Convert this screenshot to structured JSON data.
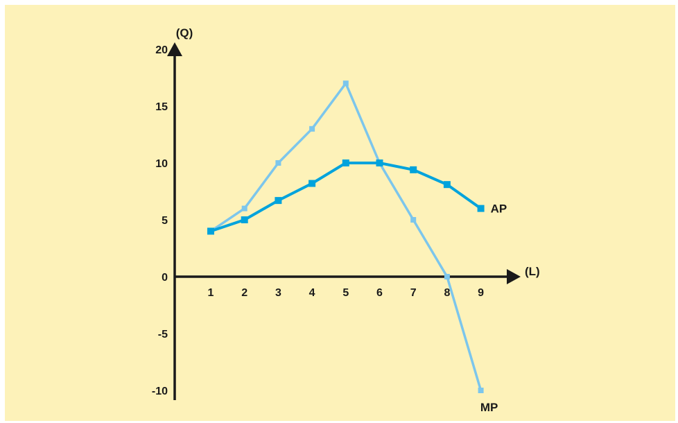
{
  "colors": {
    "background": "#fdf2b9",
    "axis": "#1a1a1a",
    "ap": "#00a3dc",
    "mp": "#7cc6ec"
  },
  "chart_data": {
    "type": "line",
    "title": "",
    "xlabel": "(L)",
    "ylabel": "(Q)",
    "x": [
      1,
      2,
      3,
      4,
      5,
      6,
      7,
      8,
      9
    ],
    "xticks": [
      "1",
      "2",
      "3",
      "4",
      "5",
      "6",
      "7",
      "8",
      "9"
    ],
    "yticks": [
      "-10",
      "-5",
      "0",
      "5",
      "10",
      "15",
      "20"
    ],
    "ylim": [
      -10,
      20
    ],
    "grid": false,
    "series": [
      {
        "name": "AP",
        "values": [
          4,
          5,
          6.7,
          8.2,
          10,
          10,
          9.4,
          8.1,
          6
        ],
        "marker": "square"
      },
      {
        "name": "MP",
        "values": [
          4,
          6,
          10,
          13,
          17,
          10,
          5,
          0,
          -10
        ],
        "marker": "square"
      }
    ]
  }
}
